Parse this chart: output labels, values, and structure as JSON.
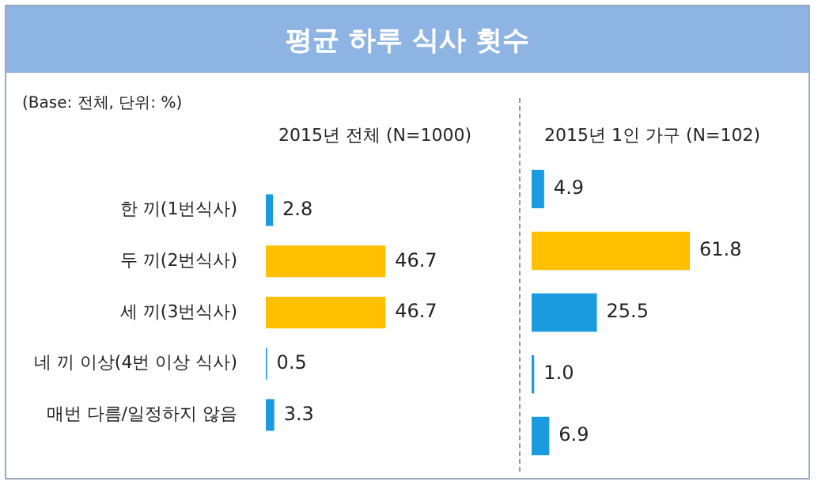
{
  "chart_data": [
    {
      "type": "bar",
      "orientation": "horizontal",
      "title": "평균 하루 식사 횟수",
      "subtitle": "2015년 전체 (N=1000)",
      "annotations": [
        "(Base: 전체, 단위: %)"
      ],
      "tick_labels": "y",
      "categories": [
        "한 끼(1번식사)",
        "두 끼(2번식사)",
        "세 끼(3번식사)",
        "네 끼 이상(4번 이상 식사)",
        "매번 다름/일정하지 않음"
      ],
      "values": [
        2.8,
        46.7,
        46.7,
        0.5,
        3.3
      ],
      "colors": [
        "#1a9be0",
        "#ffc000",
        "#ffc000",
        "#1a9be0",
        "#1a9be0"
      ],
      "value_labels": [
        "2.8",
        "46.7",
        "46.7",
        "0.5",
        "3.3"
      ]
    },
    {
      "type": "bar",
      "orientation": "horizontal",
      "subtitle": "2015년 1인 가구 (N=102)",
      "tick_labels": false,
      "categories": [
        null,
        null,
        null,
        null,
        null
      ],
      "values": [
        4.9,
        61.8,
        25.5,
        1.0,
        6.9
      ],
      "colors": [
        "#1a9be0",
        "#ffc000",
        "#1a9be0",
        "#1a9be0",
        "#1a9be0"
      ],
      "value_labels": [
        "4.9",
        "61.8",
        "25.5",
        "1.0",
        "6.9"
      ]
    }
  ]
}
